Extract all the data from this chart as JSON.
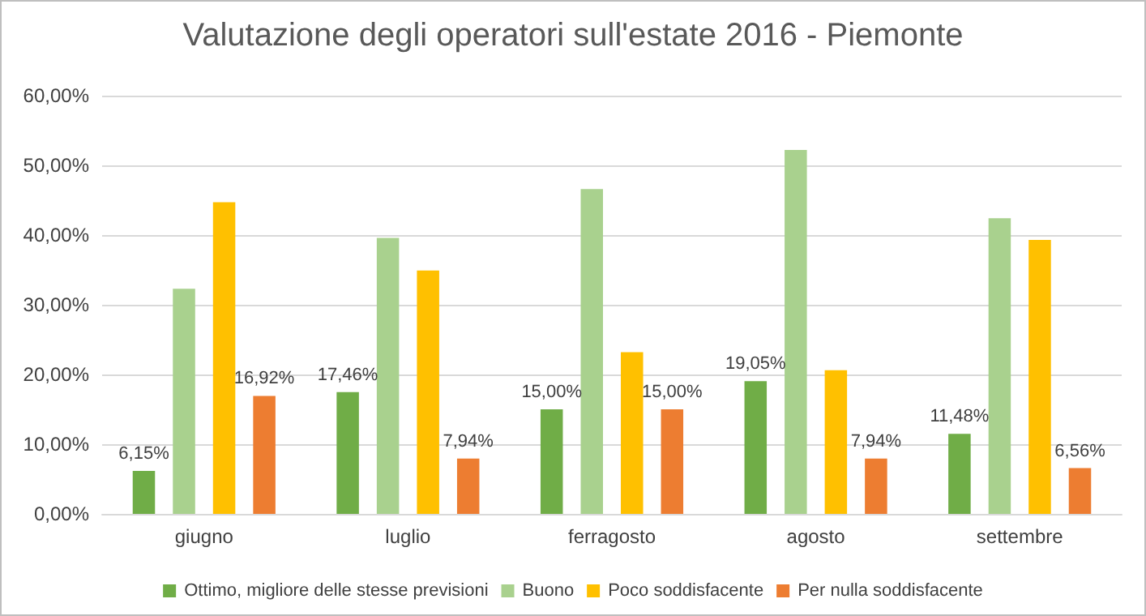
{
  "chart_data": {
    "type": "bar",
    "title": "Valutazione degli operatori sull'estate 2016 - Piemonte",
    "categories": [
      "giugno",
      "luglio",
      "ferragosto",
      "agosto",
      "settembre"
    ],
    "series": [
      {
        "name": "Ottimo, migliore delle stesse previsioni",
        "color": "#70ad47",
        "values": [
          6.15,
          17.46,
          15.0,
          19.05,
          11.48
        ],
        "value_labels": [
          "6,15%",
          "17,46%",
          "15,00%",
          "19,05%",
          "11,48%"
        ]
      },
      {
        "name": "Buono",
        "color": "#a9d18e",
        "values": [
          32.3,
          39.6,
          46.6,
          52.2,
          42.4
        ]
      },
      {
        "name": "Poco soddisfacente",
        "color": "#ffc000",
        "values": [
          44.7,
          34.9,
          23.2,
          20.6,
          39.3
        ]
      },
      {
        "name": "Per nulla soddisfacente",
        "color": "#ed7d31",
        "values": [
          16.92,
          7.94,
          15.0,
          7.94,
          6.56
        ],
        "value_labels": [
          "16,92%",
          "7,94%",
          "15,00%",
          "7,94%",
          "6,56%"
        ]
      }
    ],
    "ylim": [
      0,
      60
    ],
    "yticks": [
      {
        "value": 0,
        "label": "0,00%"
      },
      {
        "value": 10,
        "label": "10,00%"
      },
      {
        "value": 20,
        "label": "20,00%"
      },
      {
        "value": 30,
        "label": "30,00%"
      },
      {
        "value": 40,
        "label": "40,00%"
      },
      {
        "value": 50,
        "label": "50,00%"
      },
      {
        "value": 60,
        "label": "60,00%"
      }
    ],
    "grid": "y",
    "legend": "bottom"
  }
}
